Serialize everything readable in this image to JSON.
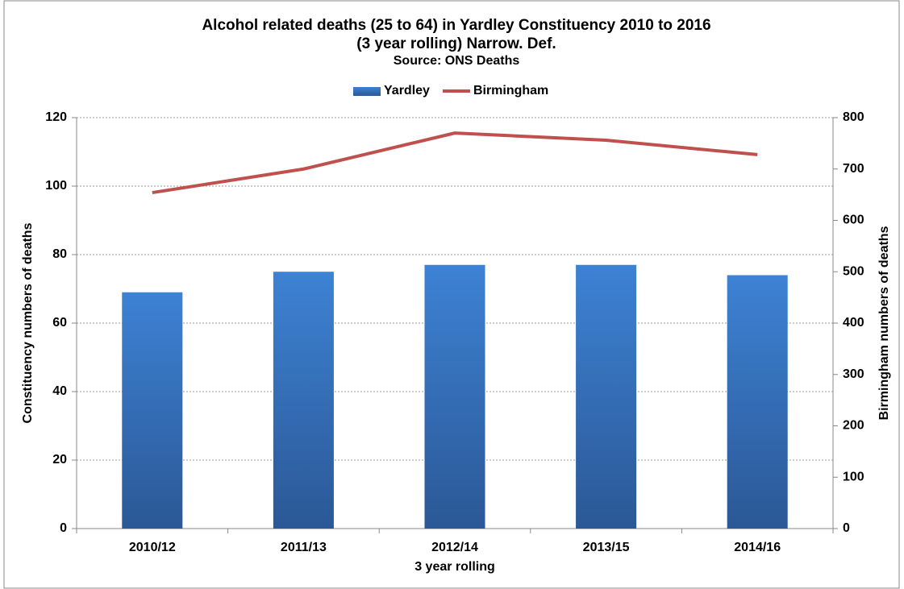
{
  "chart_data": {
    "type": "bar",
    "title": [
      "Alcohol related deaths (25 to 64) in Yardley Constituency 2010 to 2016",
      "(3 year rolling) Narrow. Def."
    ],
    "subtitle": "Source: ONS Deaths",
    "x_label": "3 year rolling",
    "y_label": "Constituency numbers of deaths",
    "y2_label": "Birmingham numbers of deaths",
    "categories": [
      "2010/12",
      "2011/13",
      "2012/14",
      "2013/15",
      "2014/16"
    ],
    "series": [
      {
        "name": "Yardley",
        "type": "bar",
        "color": "#3a7fd0",
        "values": [
          69,
          75,
          77,
          77,
          74
        ]
      },
      {
        "name": "Birmingham",
        "type": "line",
        "axis": "y2",
        "color": "#c0504d",
        "values": [
          654,
          700,
          770,
          756,
          728
        ]
      }
    ],
    "ylim": [
      0,
      120
    ],
    "yticks": [
      0,
      20,
      40,
      60,
      80,
      100,
      120
    ],
    "y2lim": [
      0,
      800
    ],
    "y2ticks": [
      0,
      100,
      200,
      300,
      400,
      500,
      600,
      700,
      800
    ],
    "grid": true,
    "legend": "top"
  }
}
